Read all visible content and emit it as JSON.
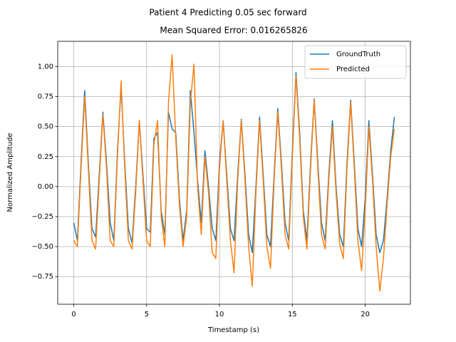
{
  "chart_data": {
    "type": "line",
    "title": "Patient 4 Predicting 0.05 sec forward",
    "subtitle": "Mean Squared Error: 0.016265826",
    "x_label": "Timestamp (s)",
    "y_label": "Normalized Amplitude",
    "x": [
      0,
      0.25,
      0.5,
      0.75,
      1,
      1.25,
      1.5,
      1.75,
      2,
      2.25,
      2.5,
      2.75,
      3,
      3.25,
      3.5,
      3.75,
      4,
      4.25,
      4.5,
      4.75,
      5,
      5.25,
      5.5,
      5.75,
      6,
      6.25,
      6.5,
      6.75,
      7,
      7.25,
      7.5,
      7.75,
      8,
      8.25,
      8.5,
      8.75,
      9,
      9.25,
      9.5,
      9.75,
      10,
      10.25,
      10.5,
      10.75,
      11,
      11.25,
      11.5,
      11.75,
      12,
      12.25,
      12.5,
      12.75,
      13,
      13.25,
      13.5,
      13.75,
      14,
      14.25,
      14.5,
      14.75,
      15,
      15.25,
      15.5,
      15.75,
      16,
      16.25,
      16.5,
      16.75,
      17,
      17.25,
      17.5,
      17.75,
      18,
      18.25,
      18.5,
      18.75,
      19,
      19.25,
      19.5,
      19.75,
      20,
      20.25,
      20.5,
      20.75,
      21,
      21.25,
      21.5,
      21.75,
      22
    ],
    "series": [
      {
        "name": "GroundTruth",
        "color": "#1f77b4",
        "values": [
          -0.3,
          -0.45,
          0.2,
          0.8,
          0.2,
          -0.35,
          -0.42,
          0.1,
          0.62,
          0.2,
          -0.3,
          -0.45,
          0.3,
          0.83,
          0.2,
          -0.35,
          -0.47,
          0.0,
          0.55,
          0.1,
          -0.35,
          -0.38,
          0.4,
          0.45,
          -0.2,
          -0.4,
          0.62,
          0.48,
          0.45,
          -0.1,
          -0.45,
          -0.2,
          0.8,
          0.45,
          0.05,
          -0.3,
          0.3,
          0.0,
          -0.35,
          -0.45,
          0.2,
          0.55,
          0.1,
          -0.35,
          -0.45,
          0.1,
          0.56,
          0.1,
          -0.4,
          -0.55,
          0.0,
          0.58,
          0.1,
          -0.4,
          -0.5,
          0.1,
          0.65,
          0.2,
          -0.3,
          -0.45,
          0.3,
          0.95,
          0.45,
          -0.2,
          -0.45,
          0.2,
          0.73,
          0.2,
          -0.3,
          -0.45,
          0.1,
          0.55,
          0.0,
          -0.4,
          -0.5,
          0.2,
          0.72,
          0.2,
          -0.35,
          -0.5,
          -0.1,
          0.55,
          0.1,
          -0.4,
          -0.55,
          -0.45,
          -0.1,
          0.3,
          0.58
        ]
      },
      {
        "name": "Predicted",
        "color": "#ff7f0e",
        "values": [
          -0.45,
          -0.5,
          0.15,
          0.75,
          0.15,
          -0.45,
          -0.52,
          0.05,
          0.6,
          0.15,
          -0.45,
          -0.5,
          0.25,
          0.88,
          0.15,
          -0.45,
          -0.52,
          -0.05,
          0.55,
          0.05,
          -0.45,
          -0.5,
          0.35,
          0.55,
          -0.25,
          -0.5,
          0.7,
          1.1,
          0.4,
          -0.15,
          -0.5,
          -0.25,
          0.7,
          1.02,
          0.0,
          -0.4,
          0.25,
          -0.05,
          -0.55,
          -0.6,
          0.15,
          0.55,
          0.05,
          -0.45,
          -0.72,
          0.05,
          0.55,
          0.05,
          -0.5,
          -0.83,
          -0.05,
          0.55,
          0.05,
          -0.5,
          -0.68,
          0.05,
          0.62,
          0.15,
          -0.4,
          -0.52,
          0.25,
          0.92,
          0.4,
          -0.25,
          -0.52,
          0.15,
          0.72,
          0.15,
          -0.4,
          -0.52,
          0.05,
          0.5,
          -0.05,
          -0.48,
          -0.6,
          0.15,
          0.7,
          0.15,
          -0.45,
          -0.7,
          -0.2,
          0.5,
          0.05,
          -0.5,
          -0.87,
          -0.6,
          -0.15,
          0.25,
          0.48
        ]
      }
    ],
    "xlim": [
      -1.1,
      23.1
    ],
    "ylim": [
      -0.98,
      1.21
    ],
    "xticks": [
      0,
      5,
      10,
      15,
      20
    ],
    "yticks": [
      {
        "value": -0.75,
        "label": "−0.75"
      },
      {
        "value": -0.5,
        "label": "−0.50"
      },
      {
        "value": -0.25,
        "label": "−0.25"
      },
      {
        "value": 0,
        "label": "0.00"
      },
      {
        "value": 0.25,
        "label": "0.25"
      },
      {
        "value": 0.5,
        "label": "0.50"
      },
      {
        "value": 0.75,
        "label": "0.75"
      },
      {
        "value": 1,
        "label": "1.00"
      }
    ],
    "grid": true,
    "legend": "upper right"
  }
}
